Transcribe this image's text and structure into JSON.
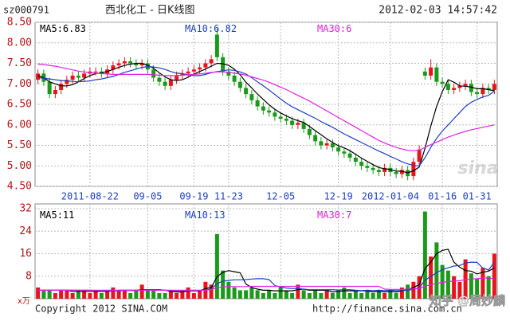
{
  "header": {
    "code": "sz000791",
    "name": "西北化工  -  日K线图",
    "datetime": "2012-02-03 14:57:42"
  },
  "footer": {
    "copyright": "Copyright 2012 SINA.COM",
    "url": "http://finance.sina.com.cn",
    "logo": "sina",
    "watermark": "知乎 @周妙麟"
  },
  "chart_data": [
    {
      "type": "candlestick",
      "legend_separator": ":",
      "up_color": "#e8141c",
      "down_color": "#1a9a1a",
      "categories": [
        null,
        null,
        null,
        null,
        null,
        null,
        null,
        null,
        null,
        "2011-08-22",
        null,
        null,
        null,
        null,
        null,
        null,
        null,
        null,
        null,
        "09-05",
        null,
        null,
        null,
        null,
        null,
        null,
        null,
        "09-19",
        null,
        null,
        null,
        null,
        null,
        "11-23",
        null,
        null,
        null,
        null,
        null,
        null,
        null,
        null,
        "12-05",
        null,
        null,
        null,
        null,
        null,
        null,
        null,
        null,
        null,
        "12-19",
        null,
        null,
        null,
        null,
        null,
        null,
        null,
        null,
        "2012-01-04",
        null,
        null,
        null,
        null,
        null,
        null,
        null,
        null,
        "01-16",
        null,
        null,
        null,
        null,
        null,
        "01-31",
        null,
        null,
        null
      ],
      "open": [
        7.1,
        7.25,
        7.05,
        6.75,
        6.85,
        7.0,
        7.1,
        7.2,
        7.15,
        7.25,
        7.3,
        7.3,
        7.25,
        7.35,
        7.45,
        7.5,
        7.55,
        7.5,
        7.45,
        7.5,
        7.35,
        7.15,
        7.05,
        6.95,
        7.1,
        7.2,
        7.25,
        7.3,
        7.35,
        7.4,
        7.5,
        8.2,
        7.65,
        7.3,
        7.2,
        7.05,
        6.9,
        6.75,
        6.6,
        6.45,
        6.35,
        6.3,
        6.2,
        6.15,
        6.1,
        6.0,
        6.05,
        5.9,
        5.75,
        5.6,
        5.5,
        5.55,
        5.45,
        5.35,
        5.3,
        5.2,
        5.1,
        5.0,
        4.95,
        4.9,
        4.85,
        4.95,
        4.85,
        4.8,
        4.9,
        4.75,
        5.1,
        7.3,
        7.2,
        7.4,
        7.05,
        7.0,
        6.85,
        6.9,
        6.95,
        7.0,
        6.8,
        6.75,
        6.9,
        6.85
      ],
      "high": [
        7.35,
        7.35,
        7.15,
        6.95,
        7.1,
        7.2,
        7.3,
        7.3,
        7.35,
        7.4,
        7.4,
        7.4,
        7.45,
        7.55,
        7.6,
        7.65,
        7.65,
        7.6,
        7.6,
        7.6,
        7.45,
        7.25,
        7.15,
        7.2,
        7.3,
        7.35,
        7.4,
        7.45,
        7.5,
        7.6,
        7.7,
        8.35,
        7.75,
        7.4,
        7.3,
        7.15,
        7.0,
        6.85,
        6.7,
        6.55,
        6.45,
        6.4,
        6.3,
        6.25,
        6.2,
        6.15,
        6.15,
        6.0,
        5.85,
        5.7,
        5.65,
        5.65,
        5.55,
        5.45,
        5.4,
        5.3,
        5.2,
        5.1,
        5.05,
        5.0,
        5.05,
        5.05,
        4.95,
        5.0,
        5.0,
        5.2,
        5.5,
        7.4,
        7.6,
        7.5,
        7.15,
        7.1,
        7.0,
        7.05,
        7.1,
        7.1,
        6.9,
        7.0,
        7.0,
        7.1
      ],
      "low": [
        7.0,
        6.95,
        6.65,
        6.65,
        6.75,
        6.9,
        7.0,
        7.05,
        7.05,
        7.15,
        7.2,
        7.15,
        7.15,
        7.25,
        7.35,
        7.4,
        7.4,
        7.35,
        7.35,
        7.25,
        7.05,
        6.95,
        6.85,
        6.85,
        7.0,
        7.1,
        7.15,
        7.2,
        7.25,
        7.3,
        7.4,
        7.55,
        7.2,
        7.1,
        6.95,
        6.8,
        6.65,
        6.5,
        6.35,
        6.25,
        6.2,
        6.1,
        6.05,
        6.0,
        5.9,
        5.9,
        5.8,
        5.65,
        5.5,
        5.4,
        5.4,
        5.35,
        5.25,
        5.2,
        5.1,
        5.0,
        4.9,
        4.85,
        4.8,
        4.75,
        4.75,
        4.75,
        4.7,
        4.7,
        4.65,
        4.65,
        5.0,
        7.1,
        7.1,
        6.95,
        6.9,
        6.75,
        6.75,
        6.8,
        6.85,
        6.7,
        6.65,
        6.65,
        6.75,
        6.75
      ],
      "close": [
        7.25,
        7.05,
        6.75,
        6.85,
        7.0,
        7.1,
        7.2,
        7.15,
        7.25,
        7.3,
        7.3,
        7.25,
        7.35,
        7.45,
        7.5,
        7.55,
        7.5,
        7.45,
        7.5,
        7.35,
        7.15,
        7.05,
        6.95,
        7.1,
        7.2,
        7.25,
        7.3,
        7.35,
        7.4,
        7.5,
        7.6,
        7.65,
        7.3,
        7.2,
        7.05,
        6.9,
        6.75,
        6.6,
        6.45,
        6.35,
        6.3,
        6.2,
        6.15,
        6.1,
        6.0,
        6.05,
        5.9,
        5.75,
        5.6,
        5.5,
        5.55,
        5.45,
        5.35,
        5.3,
        5.2,
        5.1,
        5.0,
        4.95,
        4.9,
        4.85,
        4.95,
        4.85,
        4.8,
        4.9,
        4.75,
        5.1,
        5.4,
        7.2,
        7.4,
        7.05,
        7.0,
        6.85,
        6.9,
        6.95,
        7.0,
        6.8,
        6.75,
        6.9,
        6.85,
        7.0
      ],
      "series": [
        {
          "name": "MA5",
          "color": "#000000",
          "values": [
            7.2,
            7.15,
            7.05,
            7.0,
            6.95,
            6.95,
            6.98,
            7.05,
            7.13,
            7.2,
            7.25,
            7.27,
            7.3,
            7.35,
            7.4,
            7.45,
            7.48,
            7.5,
            7.5,
            7.45,
            7.38,
            7.27,
            7.17,
            7.1,
            7.08,
            7.1,
            7.16,
            7.24,
            7.3,
            7.36,
            7.43,
            7.5,
            7.49,
            7.45,
            7.36,
            7.22,
            7.04,
            6.9,
            6.75,
            6.62,
            6.49,
            6.38,
            6.29,
            6.22,
            6.15,
            6.1,
            6.06,
            5.96,
            5.86,
            5.76,
            5.66,
            5.57,
            5.49,
            5.44,
            5.37,
            5.28,
            5.19,
            5.11,
            5.03,
            4.96,
            4.93,
            4.91,
            4.87,
            4.87,
            4.83,
            4.88,
            4.97,
            5.43,
            5.97,
            6.45,
            6.81,
            7.1,
            7.04,
            6.95,
            6.94,
            6.92,
            6.88,
            6.88,
            6.86,
            6.83
          ]
        },
        {
          "name": "MA10",
          "color": "#1c3fc4",
          "values": [
            7.15,
            7.14,
            7.12,
            7.1,
            7.08,
            7.07,
            7.06,
            7.05,
            7.06,
            7.07,
            7.1,
            7.12,
            7.15,
            7.18,
            7.23,
            7.28,
            7.32,
            7.36,
            7.4,
            7.42,
            7.41,
            7.39,
            7.35,
            7.3,
            7.26,
            7.25,
            7.22,
            7.2,
            7.2,
            7.23,
            7.27,
            7.3,
            7.32,
            7.34,
            7.33,
            7.29,
            7.24,
            7.15,
            7.05,
            6.95,
            6.85,
            6.74,
            6.63,
            6.53,
            6.44,
            6.37,
            6.3,
            6.23,
            6.16,
            6.08,
            6.01,
            5.94,
            5.86,
            5.78,
            5.71,
            5.64,
            5.57,
            5.5,
            5.43,
            5.36,
            5.3,
            5.23,
            5.17,
            5.1,
            5.05,
            5.01,
            5.0,
            5.2,
            5.45,
            5.67,
            5.85,
            6.0,
            6.15,
            6.3,
            6.45,
            6.55,
            6.62,
            6.68,
            6.72,
            6.82
          ]
        },
        {
          "name": "MA30",
          "color": "#e020e0",
          "values": [
            7.48,
            7.47,
            7.45,
            7.43,
            7.4,
            7.37,
            7.34,
            7.31,
            7.29,
            7.27,
            7.26,
            7.25,
            7.24,
            7.23,
            7.23,
            7.23,
            7.23,
            7.23,
            7.23,
            7.23,
            7.22,
            7.21,
            7.2,
            7.2,
            7.2,
            7.21,
            7.22,
            7.23,
            7.24,
            7.26,
            7.28,
            7.29,
            7.29,
            7.28,
            7.26,
            7.24,
            7.21,
            7.17,
            7.13,
            7.09,
            7.04,
            6.98,
            6.92,
            6.86,
            6.79,
            6.72,
            6.65,
            6.58,
            6.5,
            6.42,
            6.34,
            6.26,
            6.18,
            6.1,
            6.02,
            5.94,
            5.86,
            5.78,
            5.7,
            5.62,
            5.56,
            5.5,
            5.45,
            5.41,
            5.38,
            5.37,
            5.38,
            5.45,
            5.52,
            5.58,
            5.64,
            5.7,
            5.75,
            5.8,
            5.84,
            5.88,
            5.91,
            5.94,
            5.97,
            6.0
          ]
        }
      ],
      "ylim": [
        4.5,
        8.5
      ],
      "yticks": [
        {
          "value": 4.5,
          "label": "4.50"
        },
        {
          "value": 5,
          "label": "5.00"
        },
        {
          "value": 5.5,
          "label": "5.50"
        },
        {
          "value": 6,
          "label": "6.00"
        },
        {
          "value": 6.5,
          "label": "6.50"
        },
        {
          "value": 7,
          "label": "7.00"
        },
        {
          "value": 7.5,
          "label": "7.50"
        },
        {
          "value": 8,
          "label": "8.00"
        },
        {
          "value": 8.5,
          "label": "8.50"
        }
      ],
      "grid": true
    },
    {
      "type": "bar",
      "y_unit_label": "x万",
      "legend_separator": ":",
      "values": [
        4,
        3,
        3,
        2,
        3,
        3,
        2,
        3,
        3,
        2,
        3,
        2,
        3,
        4,
        3,
        3,
        2,
        3,
        5,
        3,
        3,
        2,
        2,
        3,
        2,
        3,
        4,
        2,
        3,
        6,
        5,
        23,
        10,
        6,
        4,
        3,
        3,
        4,
        3,
        2,
        3,
        2,
        4,
        3,
        2,
        5,
        3,
        2,
        3,
        2,
        3,
        2,
        3,
        4,
        2,
        3,
        2,
        3,
        2,
        3,
        2,
        3,
        2,
        4,
        5,
        6,
        8,
        31,
        15,
        20,
        12,
        10,
        8,
        6,
        14,
        9,
        7,
        11,
        8,
        16
      ],
      "series": [
        {
          "name": "MA5",
          "color": "#000000",
          "values": [
            3,
            3,
            3,
            3,
            3,
            3,
            2.6,
            2.6,
            2.6,
            2.6,
            2.6,
            2.6,
            2.6,
            2.8,
            3,
            3,
            3,
            3,
            3.2,
            3.2,
            3.2,
            3.2,
            3,
            2.6,
            2.4,
            2.4,
            2.8,
            2.8,
            2.8,
            3.6,
            4,
            7.8,
            9.4,
            10,
            9.6,
            9.2,
            5.2,
            4,
            3.4,
            3,
            3,
            2.8,
            2.8,
            2.8,
            2.8,
            3.2,
            3.4,
            3,
            3,
            3,
            3,
            2.4,
            2.6,
            2.8,
            2.8,
            2.8,
            2.8,
            2.8,
            2.4,
            2.6,
            2.4,
            2.6,
            2.4,
            2.8,
            3.2,
            4,
            5,
            10.8,
            13,
            16,
            17.2,
            17.6,
            13,
            11.2,
            10,
            9.8,
            8.8,
            9.4,
            9.8,
            11
          ]
        },
        {
          "name": "MA10",
          "color": "#1c3fc4",
          "values": [
            3,
            3,
            3,
            3,
            3,
            3,
            3,
            3,
            3,
            3,
            2.9,
            2.8,
            2.8,
            2.8,
            2.8,
            2.9,
            2.9,
            2.9,
            3,
            3.1,
            3.1,
            3,
            3,
            2.9,
            2.8,
            2.8,
            2.9,
            3,
            2.9,
            3.2,
            3.4,
            5.4,
            6.2,
            6.5,
            6.7,
            6.7,
            6.8,
            7,
            7.1,
            7.1,
            6.8,
            4.7,
            4.1,
            3.8,
            3.6,
            3.6,
            3.4,
            3.2,
            3.2,
            3.2,
            3.2,
            3.2,
            3.1,
            3.2,
            3.2,
            3,
            2.9,
            3,
            2.9,
            3,
            2.9,
            3,
            2.9,
            2.9,
            3,
            3.3,
            3.9,
            6.6,
            7.9,
            9.3,
            10.3,
            11,
            11.6,
            11.8,
            12.7,
            13,
            12.9,
            10.9,
            10.2,
            13
          ]
        },
        {
          "name": "MA30",
          "color": "#e020e0",
          "values": [
            3,
            3,
            3,
            3,
            3,
            3,
            3,
            3,
            3,
            3,
            3,
            3,
            3,
            3,
            3,
            3,
            3,
            3,
            3,
            3,
            3,
            3,
            3,
            3,
            3,
            3,
            3,
            3,
            3,
            3.1,
            3.2,
            3.9,
            4.2,
            4.3,
            4.3,
            4.3,
            4.3,
            4.4,
            4.4,
            4.4,
            4.4,
            4.4,
            4.4,
            4.4,
            4.4,
            4.4,
            4.4,
            4.4,
            4.4,
            4.4,
            4.4,
            4.4,
            4.4,
            4.4,
            4.4,
            4.4,
            4.4,
            4.4,
            4.4,
            4.4,
            3.4,
            3.3,
            3.3,
            3.3,
            3.4,
            3.5,
            3.6,
            4.5,
            4.9,
            5.5,
            5.8,
            6.1,
            6.3,
            6.4,
            6.8,
            7,
            7.1,
            7.3,
            7.4,
            7
          ]
        }
      ],
      "ylim": [
        0,
        32
      ],
      "yticks": [
        8,
        16,
        24,
        32
      ],
      "grid": true
    }
  ]
}
